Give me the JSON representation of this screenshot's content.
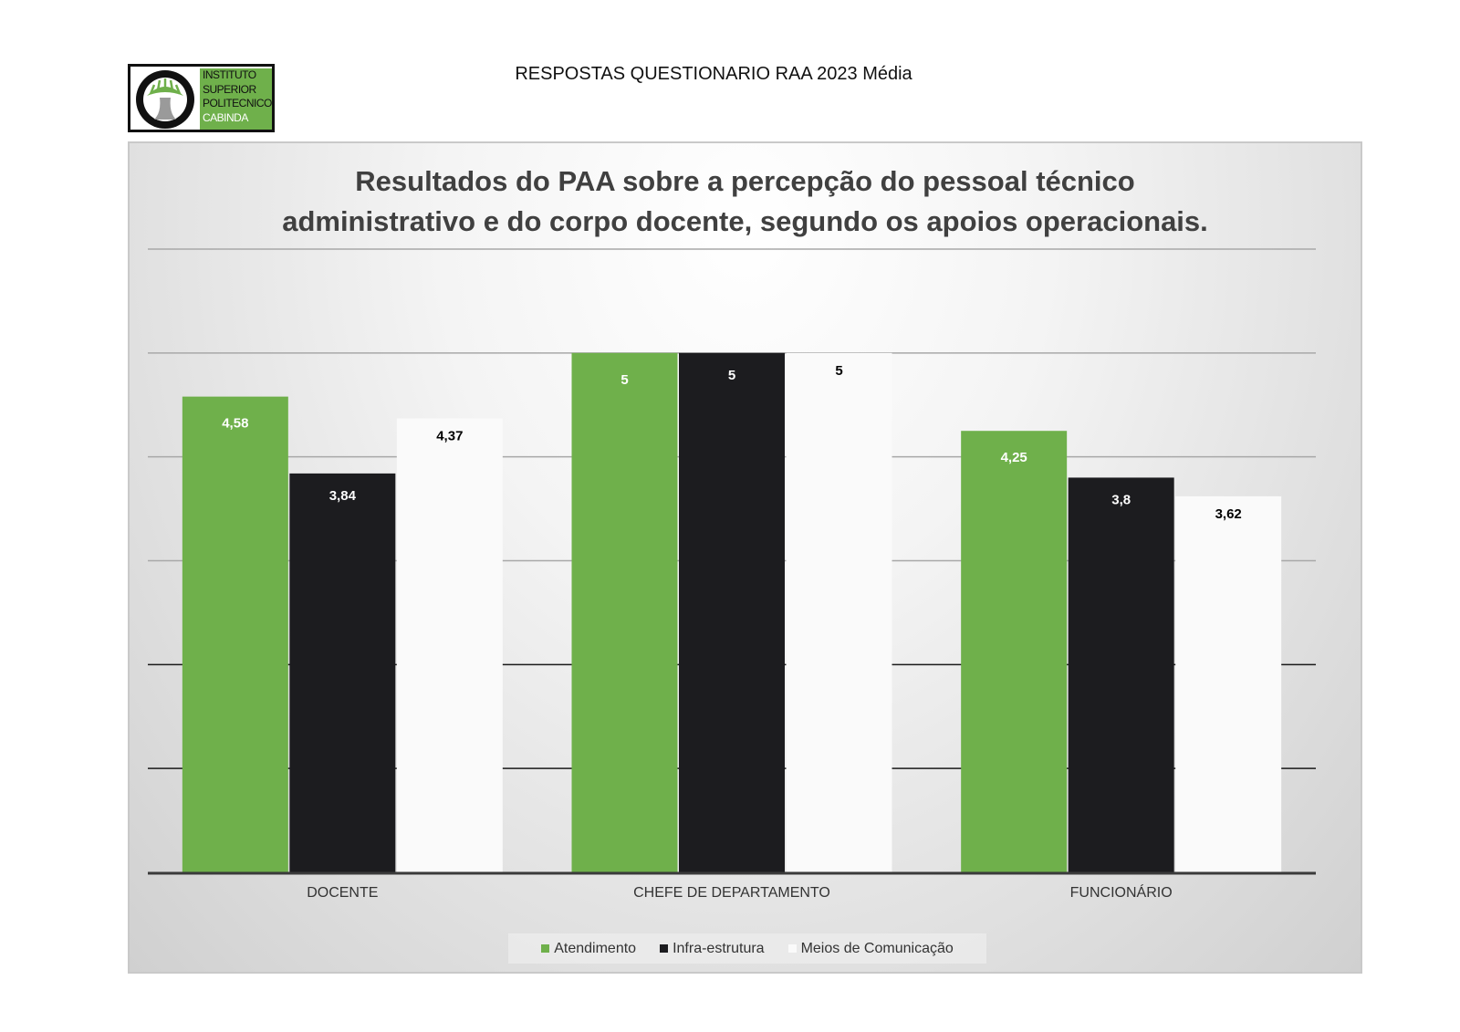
{
  "header": {
    "title": "RESPOSTAS QUESTIONARIO RAA 2023 Média",
    "logo_lines": [
      "INSTITUTO",
      "SUPERIOR",
      "POLITECNICO",
      "CABINDA"
    ]
  },
  "chart_data": {
    "type": "bar",
    "title_lines": [
      "Resultados do PAA sobre a percepção do pessoal técnico",
      "administrativo e do corpo docente, segundo os apoios operacionais."
    ],
    "categories": [
      "DOCENTE",
      "CHEFE DE DEPARTAMENTO",
      "FUNCIONÁRIO"
    ],
    "series": [
      {
        "name": "Atendimento",
        "values": [
          4.58,
          5,
          4.25
        ],
        "labels": [
          "4,58",
          "5",
          "4,25"
        ],
        "color": "#6fb04b",
        "label_color": "#ffffff"
      },
      {
        "name": "Infra-estrutura",
        "values": [
          3.84,
          5,
          3.8
        ],
        "labels": [
          "3,84",
          "5",
          "3,8"
        ],
        "color": "#1c1c1f",
        "label_color": "#ffffff"
      },
      {
        "name": "Meios de Comunicação",
        "values": [
          4.37,
          5,
          3.62
        ],
        "labels": [
          "4,37",
          "5",
          "3,62"
        ],
        "color": "#fafafa",
        "label_color": "#000000"
      }
    ],
    "ylim": [
      0,
      6
    ],
    "y_axis_visible": false,
    "grid": true,
    "legend_position": "bottom"
  }
}
